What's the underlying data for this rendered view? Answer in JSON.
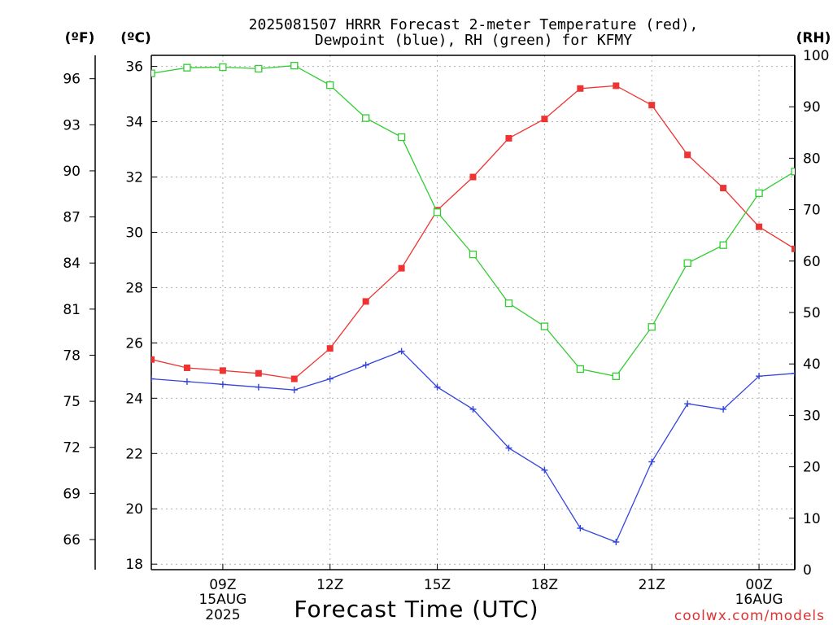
{
  "chart_data": {
    "type": "line",
    "title_line1": "2025081507 HRRR Forecast 2-meter Temperature (red),",
    "title_line2": "Dewpoint (blue), RH (green) for KFMY",
    "xlabel": "Forecast Time (UTC)",
    "units": {
      "fahrenheit": "(ºF)",
      "celsius": "(ºC)",
      "rh": "(RH)"
    },
    "credit": "coolwx.com/models",
    "grid": true,
    "x": [
      7,
      8,
      9,
      10,
      11,
      12,
      13,
      14,
      15,
      16,
      17,
      18,
      19,
      20,
      21,
      22,
      23,
      24,
      25
    ],
    "xlim": [
      7,
      25
    ],
    "x_ticks": [
      {
        "x": 9,
        "label": "09Z",
        "sub1": "15AUG",
        "sub2": "2025"
      },
      {
        "x": 12,
        "label": "12Z",
        "sub1": "",
        "sub2": ""
      },
      {
        "x": 15,
        "label": "15Z",
        "sub1": "",
        "sub2": ""
      },
      {
        "x": 18,
        "label": "18Z",
        "sub1": "",
        "sub2": ""
      },
      {
        "x": 21,
        "label": "21Z",
        "sub1": "",
        "sub2": ""
      },
      {
        "x": 24,
        "label": "00Z",
        "sub1": "16AUG",
        "sub2": ""
      }
    ],
    "celsius_axis": {
      "lim": [
        17.8,
        36.4
      ],
      "ticks": [
        18,
        20,
        22,
        24,
        26,
        28,
        30,
        32,
        34,
        36
      ]
    },
    "fahrenheit_ticks": [
      66,
      69,
      72,
      75,
      78,
      81,
      84,
      87,
      90,
      93,
      96
    ],
    "rh_axis": {
      "lim": [
        0,
        100
      ],
      "ticks": [
        0,
        10,
        20,
        30,
        40,
        50,
        60,
        70,
        80,
        90,
        100
      ]
    },
    "series": [
      {
        "name": "Temperature",
        "axis": "celsius",
        "color": "#ee3333",
        "marker": "filled-square",
        "values": [
          25.4,
          25.1,
          25.0,
          24.9,
          24.7,
          25.8,
          27.5,
          28.7,
          30.8,
          32.0,
          33.4,
          34.1,
          35.2,
          35.3,
          34.6,
          32.8,
          31.6,
          30.2,
          29.4
        ]
      },
      {
        "name": "Dewpoint",
        "axis": "celsius",
        "color": "#3344dd",
        "marker": "plus",
        "values": [
          24.7,
          24.6,
          24.5,
          24.4,
          24.3,
          24.7,
          25.2,
          25.7,
          24.4,
          23.6,
          22.2,
          21.4,
          19.3,
          18.8,
          21.7,
          23.8,
          23.6,
          24.8,
          24.9
        ]
      },
      {
        "name": "RH",
        "axis": "rh",
        "color": "#33cc33",
        "marker": "open-square",
        "values": [
          96.5,
          97.6,
          97.7,
          97.4,
          98.0,
          94.2,
          87.8,
          84.1,
          69.5,
          61.3,
          51.8,
          47.3,
          39.0,
          37.6,
          47.2,
          59.6,
          63.1,
          73.2,
          77.4
        ]
      }
    ]
  }
}
